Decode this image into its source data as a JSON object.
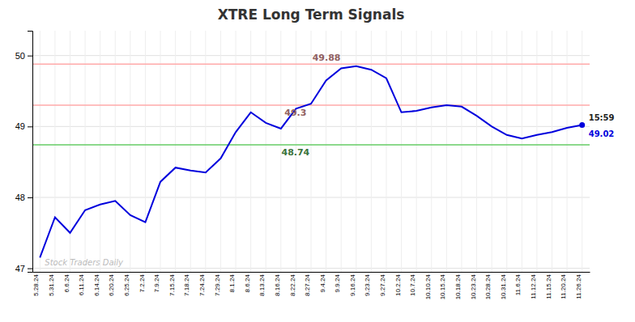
{
  "chart_data": {
    "type": "line",
    "title": "XTRE Long Term Signals",
    "color": "#0000dd",
    "categories": [
      "5.28.24",
      "5.31.24",
      "6.6.24",
      "6.11.24",
      "6.14.24",
      "6.20.24",
      "6.25.24",
      "7.2.24",
      "7.9.24",
      "7.15.24",
      "7.18.24",
      "7.24.24",
      "7.29.24",
      "8.1.24",
      "8.6.24",
      "8.13.24",
      "8.16.24",
      "8.22.24",
      "8.27.24",
      "9.4.24",
      "9.9.24",
      "9.16.24",
      "9.23.24",
      "9.27.24",
      "10.2.24",
      "10.7.24",
      "10.10.24",
      "10.15.24",
      "10.18.24",
      "10.23.24",
      "10.28.24",
      "10.31.24",
      "11.6.24",
      "11.12.24",
      "11.15.24",
      "11.20.24",
      "11.26.24"
    ],
    "values": [
      47.15,
      47.72,
      47.5,
      47.82,
      47.9,
      47.95,
      47.75,
      47.65,
      48.22,
      48.42,
      48.38,
      48.35,
      48.55,
      48.92,
      49.2,
      49.05,
      48.97,
      49.25,
      49.32,
      49.65,
      49.82,
      49.85,
      49.8,
      49.68,
      49.2,
      49.22,
      49.27,
      49.3,
      49.28,
      49.15,
      49.0,
      48.88,
      48.83,
      48.88,
      48.92,
      48.98,
      49.02
    ],
    "ylim": [
      46.95,
      50.35
    ],
    "yticks": [
      47,
      48,
      49,
      50
    ],
    "grid": true,
    "reference_lines": [
      {
        "value": 49.88,
        "label": "49.88",
        "color": "#ffaaaa"
      },
      {
        "value": 49.3,
        "label": "49.3",
        "color": "#ffaaaa"
      },
      {
        "value": 48.74,
        "label": "48.74",
        "color": "#66cc66"
      }
    ],
    "annotations": [
      {
        "text": "15:59"
      },
      {
        "text": "49.02",
        "color": "#0000dd"
      },
      {
        "text": "Stock Traders Daily",
        "color": "#bbbbbb"
      }
    ]
  }
}
